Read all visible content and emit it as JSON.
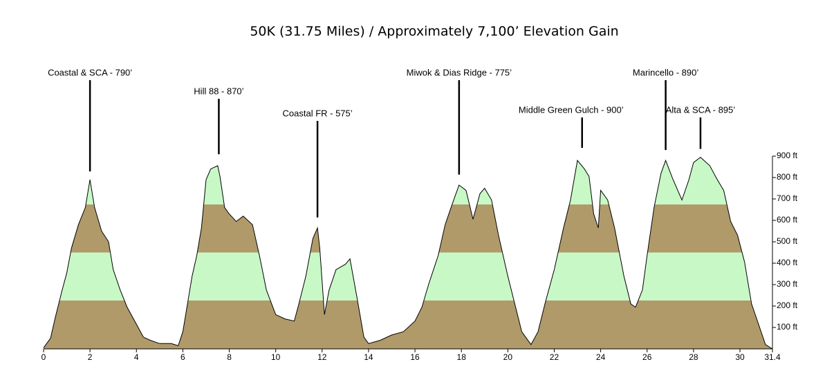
{
  "chart_data": {
    "type": "area",
    "title": "50K (31.75 Miles) / Approximately 7,100’ Elevation Gain",
    "x": [
      0,
      0.3,
      0.5,
      0.8,
      1.0,
      1.2,
      1.5,
      1.8,
      2.0,
      2.2,
      2.5,
      2.8,
      3.0,
      3.3,
      3.6,
      4.0,
      4.3,
      4.6,
      5.0,
      5.5,
      5.8,
      6.0,
      6.2,
      6.4,
      6.6,
      6.8,
      7.0,
      7.2,
      7.5,
      7.6,
      7.8,
      8.0,
      8.3,
      8.6,
      9.0,
      9.3,
      9.6,
      10.0,
      10.4,
      10.8,
      11.0,
      11.3,
      11.6,
      11.8,
      11.9,
      12.1,
      12.3,
      12.6,
      13.0,
      13.2,
      13.5,
      13.8,
      14.0,
      14.5,
      15.0,
      15.5,
      16.0,
      16.3,
      16.6,
      17.0,
      17.3,
      17.6,
      17.9,
      18.2,
      18.5,
      18.8,
      19.0,
      19.3,
      19.6,
      20.0,
      20.3,
      20.6,
      21.0,
      21.3,
      21.6,
      22.0,
      22.4,
      22.7,
      23.0,
      23.3,
      23.5,
      23.7,
      23.9,
      24.0,
      24.3,
      24.6,
      25.0,
      25.3,
      25.5,
      25.8,
      26.0,
      26.3,
      26.6,
      26.8,
      27.1,
      27.5,
      27.8,
      28.0,
      28.3,
      28.7,
      29.0,
      29.3,
      29.6,
      29.9,
      30.2,
      30.5,
      30.8,
      31.1,
      31.4
    ],
    "values": [
      5,
      50,
      145,
      275,
      355,
      470,
      580,
      660,
      790,
      660,
      550,
      500,
      370,
      275,
      195,
      115,
      55,
      40,
      25,
      25,
      15,
      80,
      210,
      340,
      435,
      565,
      790,
      840,
      855,
      805,
      660,
      630,
      595,
      620,
      580,
      435,
      275,
      160,
      140,
      130,
      210,
      340,
      515,
      565,
      470,
      160,
      275,
      370,
      395,
      420,
      240,
      55,
      25,
      40,
      65,
      80,
      130,
      195,
      305,
      435,
      580,
      675,
      765,
      740,
      605,
      725,
      750,
      695,
      530,
      340,
      210,
      80,
      20,
      80,
      210,
      370,
      565,
      695,
      880,
      840,
      805,
      630,
      565,
      740,
      695,
      565,
      340,
      210,
      195,
      275,
      435,
      660,
      820,
      880,
      795,
      695,
      790,
      870,
      895,
      855,
      795,
      740,
      595,
      530,
      405,
      210,
      115,
      20,
      0
    ],
    "band_colors": [
      "#b09a6a",
      "#c8f8c6",
      "#b09a6a",
      "#c8f8c6"
    ],
    "xlim": [
      0,
      31.4
    ],
    "xticks": [
      0,
      2,
      4,
      6,
      8,
      10,
      12,
      14,
      16,
      18,
      20,
      22,
      24,
      26,
      28,
      30,
      31.4
    ],
    "ylim": [
      0,
      900
    ],
    "yticks": [
      {
        "value": 100,
        "label": "100 ft"
      },
      {
        "value": 200,
        "label": "200 ft"
      },
      {
        "value": 300,
        "label": "300 ft"
      },
      {
        "value": 400,
        "label": "400 ft"
      },
      {
        "value": 500,
        "label": "500 ft"
      },
      {
        "value": 600,
        "label": "600 ft"
      },
      {
        "value": 700,
        "label": "700 ft"
      },
      {
        "value": 800,
        "label": "800 ft"
      },
      {
        "value": 900,
        "label": "900 ft"
      }
    ],
    "annotations": [
      {
        "text": "Coastal & SCA - 790’",
        "x": 2.0,
        "y": 790
      },
      {
        "text": "Hill 88 - 870’",
        "x": 7.55,
        "y": 870
      },
      {
        "text": "Coastal FR - 575’",
        "x": 11.8,
        "y": 575
      },
      {
        "text": "Miwok & Dias Ridge - 775’",
        "x": 17.9,
        "y": 775
      },
      {
        "text": "Middle Green Gulch - 900’",
        "x": 23.2,
        "y": 900
      },
      {
        "text": "Marincello - 890’",
        "x": 26.8,
        "y": 890
      },
      {
        "text": "Alta & SCA - 895’",
        "x": 28.3,
        "y": 895
      }
    ]
  }
}
